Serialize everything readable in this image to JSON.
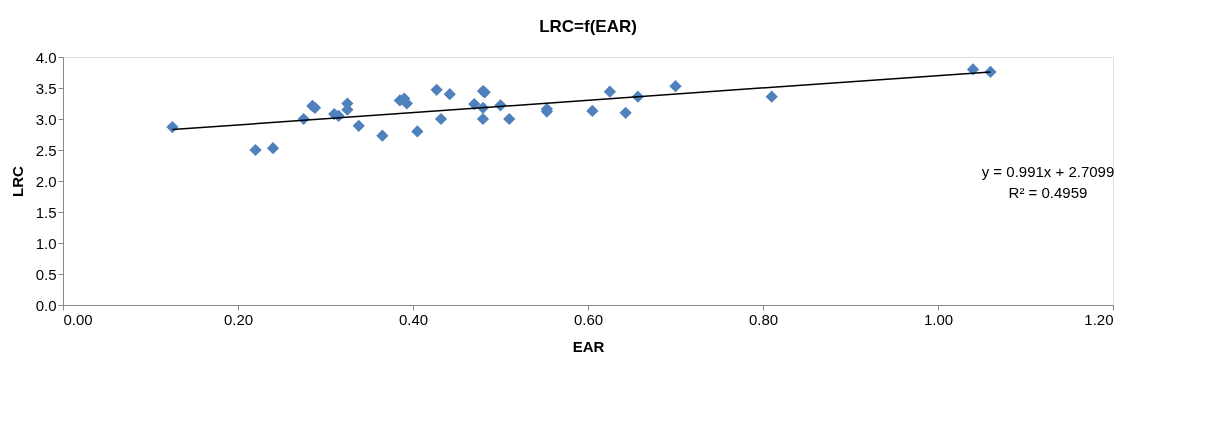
{
  "chart_data": {
    "type": "scatter",
    "title": "LRC=f(EAR)",
    "xlabel": "EAR",
    "ylabel": "LRC",
    "xlim": [
      0,
      1.2
    ],
    "ylim": [
      0,
      4
    ],
    "xticks": [
      {
        "value": 0,
        "label": "0.00"
      },
      {
        "value": 0.2,
        "label": "0.20"
      },
      {
        "value": 0.4,
        "label": "0.40"
      },
      {
        "value": 0.6,
        "label": "0.60"
      },
      {
        "value": 0.8,
        "label": "0.80"
      },
      {
        "value": 1,
        "label": "1.00"
      },
      {
        "value": 1.2,
        "label": "1.20"
      }
    ],
    "yticks": [
      {
        "value": 0,
        "label": "0.0"
      },
      {
        "value": 0.5,
        "label": "0.5"
      },
      {
        "value": 1,
        "label": "1.0"
      },
      {
        "value": 1.5,
        "label": "1.5"
      },
      {
        "value": 2,
        "label": "2.0"
      },
      {
        "value": 2.5,
        "label": "2.5"
      },
      {
        "value": 3,
        "label": "3.0"
      },
      {
        "value": 3.5,
        "label": "3.5"
      },
      {
        "value": 4,
        "label": "4.0"
      }
    ],
    "grid": false,
    "marker": "diamond",
    "series": [
      {
        "type": "scatter",
        "color": "#4f81bd",
        "x": [
          0.125,
          0.22,
          0.24,
          0.275,
          0.285,
          0.288,
          0.31,
          0.315,
          0.325,
          0.325,
          0.338,
          0.365,
          0.385,
          0.39,
          0.393,
          0.405,
          0.427,
          0.432,
          0.442,
          0.47,
          0.48,
          0.482,
          0.48,
          0.48,
          0.5,
          0.51,
          0.553,
          0.553,
          0.605,
          0.625,
          0.643,
          0.657,
          0.7,
          0.81,
          1.04,
          1.06
        ],
        "values": [
          2.87,
          2.5,
          2.53,
          3.0,
          3.21,
          3.18,
          3.08,
          3.05,
          3.25,
          3.15,
          2.89,
          2.73,
          3.3,
          3.33,
          3.25,
          2.8,
          3.47,
          3.0,
          3.4,
          3.24,
          3.45,
          3.43,
          3.18,
          3.0,
          3.22,
          3.0,
          3.16,
          3.12,
          3.13,
          3.44,
          3.1,
          3.36,
          3.53,
          3.36,
          3.8,
          3.76
        ]
      },
      {
        "type": "line",
        "color": "#000000",
        "marker": "none",
        "line_style": "solid",
        "x": [
          0.125,
          1.06
        ],
        "values": [
          2.83,
          3.76
        ]
      }
    ],
    "annotations": [
      "y = 0.991x + 2.7099",
      "R² = 0.4959"
    ]
  }
}
